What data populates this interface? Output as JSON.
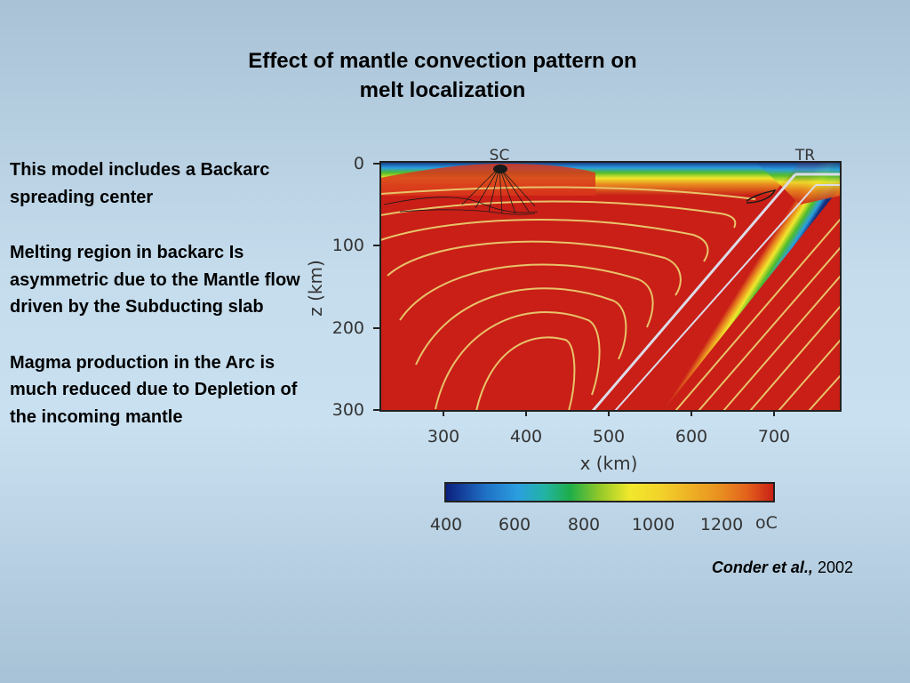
{
  "slide": {
    "title_line1": "Effect of mantle convection pattern on",
    "title_line2": "melt localization",
    "bullets": [
      "This model includes a Backarc spreading center",
      "Melting region in backarc Is asymmetric due to the Mantle flow driven by the Subducting slab",
      "Magma production in the Arc is much reduced due to Depletion of the incoming mantle"
    ],
    "citation_author": "Conder et al.,",
    "citation_year": "2002"
  },
  "figure": {
    "labels": {
      "sc": "SC",
      "tr": "TR"
    },
    "y_axis": {
      "label": "z (km)",
      "ticks": [
        "0",
        "100",
        "200",
        "300"
      ]
    },
    "x_axis": {
      "label": "x (km)",
      "ticks": [
        "300",
        "400",
        "500",
        "600",
        "700"
      ]
    },
    "colorbar": {
      "ticks": [
        "400",
        "600",
        "800",
        "1000",
        "1200"
      ],
      "unit": "oC",
      "colors": [
        "#0b1e7c",
        "#13419c",
        "#1f6fc4",
        "#2b9ee0",
        "#22b3a6",
        "#1fae4a",
        "#4fbb2c",
        "#93c829",
        "#c9d42a",
        "#f1e82c",
        "#f2d42a",
        "#eeb325",
        "#e98d20",
        "#e3601c",
        "#d8361b",
        "#c91f17"
      ]
    }
  }
}
